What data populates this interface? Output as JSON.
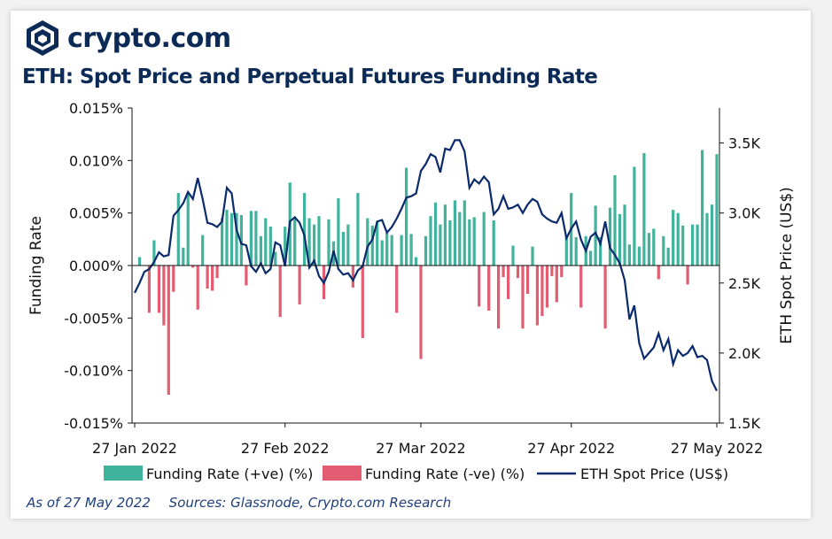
{
  "brand": {
    "name": "crypto.com"
  },
  "footer": {
    "as_of": "As of 27 May 2022",
    "sources": "Sources: Glassnode, Crypto.com Research"
  },
  "colors": {
    "positive": "#3fb39b",
    "negative": "#e25c72",
    "price": "#0b2a6b",
    "brand": "#0b2a56"
  },
  "chart_data": {
    "type": "bar+line",
    "title": "ETH: Spot Price and Perpetual Futures Funding Rate",
    "ylabel_left": "Funding Rate",
    "ylabel_right": "ETH Spot Price (US$)",
    "ylim_left": [
      -0.015,
      0.015
    ],
    "ylim_right": [
      1500,
      3750
    ],
    "yticks_left": [
      "0.015%",
      "0.010%",
      "0.005%",
      "0.000%",
      "-0.005%",
      "-0.010%",
      "-0.015%"
    ],
    "yticks_right": [
      "3.5K",
      "3.0K",
      "2.5K",
      "2.0K",
      "1.5K"
    ],
    "xticks": [
      "27 Jan 2022",
      "27 Feb 2022",
      "27 Mar 2022",
      "27 Apr 2022",
      "27 May 2022"
    ],
    "x_range": [
      "2022-01-27",
      "2022-05-27"
    ],
    "legend": [
      "Funding Rate (+ve) (%)",
      "Funding Rate (-ve) (%)",
      "ETH Spot Price (US$)"
    ],
    "legend_position": "bottom",
    "grid": false,
    "funding_rate": [
      [
        "2022-01-28",
        0.0008
      ],
      [
        "2022-01-29",
        0.0
      ],
      [
        "2022-01-30",
        -0.0045
      ],
      [
        "2022-01-31",
        0.0024
      ],
      [
        "2022-02-01",
        -0.0045
      ],
      [
        "2022-02-02",
        -0.0057
      ],
      [
        "2022-02-03",
        -0.0123
      ],
      [
        "2022-02-04",
        -0.0025
      ],
      [
        "2022-02-05",
        0.0069
      ],
      [
        "2022-02-06",
        0.0017
      ],
      [
        "2022-02-07",
        0.0069
      ],
      [
        "2022-02-08",
        -0.0002
      ],
      [
        "2022-02-09",
        -0.0042
      ],
      [
        "2022-02-10",
        0.0029
      ],
      [
        "2022-02-11",
        -0.0022
      ],
      [
        "2022-02-12",
        -0.0024
      ],
      [
        "2022-02-13",
        -0.0012
      ],
      [
        "2022-02-14",
        0.0045
      ],
      [
        "2022-02-15",
        0.0053
      ],
      [
        "2022-02-16",
        0.005
      ],
      [
        "2022-02-17",
        0.005
      ],
      [
        "2022-02-18",
        0.0048
      ],
      [
        "2022-02-19",
        -0.0019
      ],
      [
        "2022-02-20",
        0.0052
      ],
      [
        "2022-02-21",
        0.0052
      ],
      [
        "2022-02-22",
        0.0028
      ],
      [
        "2022-02-23",
        0.0045
      ],
      [
        "2022-02-24",
        0.0037
      ],
      [
        "2022-02-25",
        0.0013
      ],
      [
        "2022-02-26",
        -0.0049
      ],
      [
        "2022-02-27",
        0.0037
      ],
      [
        "2022-02-28",
        0.0079
      ],
      [
        "2022-03-01",
        0.0045
      ],
      [
        "2022-03-02",
        -0.0037
      ],
      [
        "2022-03-03",
        0.0069
      ],
      [
        "2022-03-04",
        0.0045
      ],
      [
        "2022-03-05",
        0.0039
      ],
      [
        "2022-03-06",
        0.0047
      ],
      [
        "2022-03-07",
        -0.0032
      ],
      [
        "2022-03-08",
        0.0044
      ],
      [
        "2022-03-09",
        0.0023
      ],
      [
        "2022-03-10",
        0.0064
      ],
      [
        "2022-03-11",
        0.0032
      ],
      [
        "2022-03-12",
        0.0039
      ],
      [
        "2022-03-13",
        -0.0021
      ],
      [
        "2022-03-14",
        0.0069
      ],
      [
        "2022-03-15",
        -0.0069
      ],
      [
        "2022-03-16",
        0.0045
      ],
      [
        "2022-03-17",
        0.0038
      ],
      [
        "2022-03-18",
        0.0042
      ],
      [
        "2022-03-19",
        0.0024
      ],
      [
        "2022-03-20",
        0.0031
      ],
      [
        "2022-03-21",
        0.0029
      ],
      [
        "2022-03-22",
        -0.0045
      ],
      [
        "2022-03-23",
        0.0029
      ],
      [
        "2022-03-24",
        0.0093
      ],
      [
        "2022-03-25",
        0.003
      ],
      [
        "2022-03-26",
        0.0008
      ],
      [
        "2022-03-27",
        -0.0089
      ],
      [
        "2022-03-28",
        0.0028
      ],
      [
        "2022-03-29",
        0.0047
      ],
      [
        "2022-03-30",
        0.006
      ],
      [
        "2022-03-31",
        0.0039
      ],
      [
        "2022-04-01",
        0.0058
      ],
      [
        "2022-04-02",
        0.0043
      ],
      [
        "2022-04-03",
        0.0062
      ],
      [
        "2022-04-04",
        0.0051
      ],
      [
        "2022-04-05",
        0.0062
      ],
      [
        "2022-04-06",
        0.0044
      ],
      [
        "2022-04-07",
        0.0046
      ],
      [
        "2022-04-08",
        -0.0039
      ],
      [
        "2022-04-09",
        0.0051
      ],
      [
        "2022-04-10",
        -0.0043
      ],
      [
        "2022-04-11",
        0.0043
      ],
      [
        "2022-04-12",
        -0.006
      ],
      [
        "2022-04-13",
        -0.0011
      ],
      [
        "2022-04-14",
        -0.0032
      ],
      [
        "2022-04-15",
        0.0019
      ],
      [
        "2022-04-16",
        -0.0012
      ],
      [
        "2022-04-17",
        -0.006
      ],
      [
        "2022-04-18",
        -0.0027
      ],
      [
        "2022-04-19",
        0.0018
      ],
      [
        "2022-04-20",
        -0.0057
      ],
      [
        "2022-04-21",
        -0.0048
      ],
      [
        "2022-04-22",
        -0.004
      ],
      [
        "2022-04-23",
        -0.001
      ],
      [
        "2022-04-24",
        -0.0035
      ],
      [
        "2022-04-25",
        -0.0011
      ],
      [
        "2022-04-26",
        0.0028
      ],
      [
        "2022-04-27",
        0.0069
      ],
      [
        "2022-04-28",
        0.0027
      ],
      [
        "2022-04-29",
        -0.004
      ],
      [
        "2022-04-30",
        0.0028
      ],
      [
        "2022-05-01",
        0.0014
      ],
      [
        "2022-05-02",
        0.0057
      ],
      [
        "2022-05-03",
        0.0027
      ],
      [
        "2022-05-04",
        -0.006
      ],
      [
        "2022-05-05",
        0.0055
      ],
      [
        "2022-05-06",
        0.0086
      ],
      [
        "2022-05-07",
        0.0049
      ],
      [
        "2022-05-08",
        0.0058
      ],
      [
        "2022-05-09",
        0.002
      ],
      [
        "2022-05-10",
        0.0094
      ],
      [
        "2022-05-11",
        0.0018
      ],
      [
        "2022-05-12",
        0.0107
      ],
      [
        "2022-05-13",
        0.0031
      ],
      [
        "2022-05-14",
        0.0035
      ],
      [
        "2022-05-15",
        -0.0013
      ],
      [
        "2022-05-16",
        0.0028
      ],
      [
        "2022-05-17",
        0.0017
      ],
      [
        "2022-05-18",
        0.0053
      ],
      [
        "2022-05-19",
        0.005
      ],
      [
        "2022-05-20",
        0.0038
      ],
      [
        "2022-05-21",
        -0.0018
      ],
      [
        "2022-05-22",
        0.0039
      ],
      [
        "2022-05-23",
        0.0039
      ],
      [
        "2022-05-24",
        0.011
      ],
      [
        "2022-05-25",
        0.005
      ],
      [
        "2022-05-26",
        0.0058
      ],
      [
        "2022-05-27",
        0.0106
      ]
    ],
    "price": [
      [
        "2022-01-27",
        2430
      ],
      [
        "2022-01-28",
        2500
      ],
      [
        "2022-01-29",
        2580
      ],
      [
        "2022-01-30",
        2600
      ],
      [
        "2022-01-31",
        2650
      ],
      [
        "2022-02-01",
        2720
      ],
      [
        "2022-02-02",
        2690
      ],
      [
        "2022-02-03",
        2700
      ],
      [
        "2022-02-04",
        2980
      ],
      [
        "2022-02-05",
        3020
      ],
      [
        "2022-02-06",
        3070
      ],
      [
        "2022-02-07",
        3150
      ],
      [
        "2022-02-08",
        3100
      ],
      [
        "2022-02-09",
        3250
      ],
      [
        "2022-02-10",
        3100
      ],
      [
        "2022-02-11",
        2930
      ],
      [
        "2022-02-12",
        2920
      ],
      [
        "2022-02-13",
        2900
      ],
      [
        "2022-02-14",
        2940
      ],
      [
        "2022-02-15",
        3180
      ],
      [
        "2022-02-16",
        3140
      ],
      [
        "2022-02-17",
        2880
      ],
      [
        "2022-02-18",
        2780
      ],
      [
        "2022-02-19",
        2770
      ],
      [
        "2022-02-20",
        2620
      ],
      [
        "2022-02-21",
        2580
      ],
      [
        "2022-02-22",
        2640
      ],
      [
        "2022-02-23",
        2570
      ],
      [
        "2022-02-24",
        2600
      ],
      [
        "2022-02-25",
        2790
      ],
      [
        "2022-02-26",
        2770
      ],
      [
        "2022-02-27",
        2620
      ],
      [
        "2022-02-28",
        2940
      ],
      [
        "2022-03-01",
        2970
      ],
      [
        "2022-03-02",
        2930
      ],
      [
        "2022-03-03",
        2840
      ],
      [
        "2022-03-04",
        2610
      ],
      [
        "2022-03-05",
        2660
      ],
      [
        "2022-03-06",
        2550
      ],
      [
        "2022-03-07",
        2500
      ],
      [
        "2022-03-08",
        2580
      ],
      [
        "2022-03-09",
        2730
      ],
      [
        "2022-03-10",
        2600
      ],
      [
        "2022-03-11",
        2560
      ],
      [
        "2022-03-12",
        2570
      ],
      [
        "2022-03-13",
        2520
      ],
      [
        "2022-03-14",
        2590
      ],
      [
        "2022-03-15",
        2620
      ],
      [
        "2022-03-16",
        2760
      ],
      [
        "2022-03-17",
        2810
      ],
      [
        "2022-03-18",
        2940
      ],
      [
        "2022-03-19",
        2950
      ],
      [
        "2022-03-20",
        2860
      ],
      [
        "2022-03-21",
        2900
      ],
      [
        "2022-03-22",
        2960
      ],
      [
        "2022-03-23",
        3030
      ],
      [
        "2022-03-24",
        3110
      ],
      [
        "2022-03-25",
        3120
      ],
      [
        "2022-03-26",
        3140
      ],
      [
        "2022-03-27",
        3300
      ],
      [
        "2022-03-28",
        3350
      ],
      [
        "2022-03-29",
        3420
      ],
      [
        "2022-03-30",
        3400
      ],
      [
        "2022-03-31",
        3290
      ],
      [
        "2022-04-01",
        3460
      ],
      [
        "2022-04-02",
        3450
      ],
      [
        "2022-04-03",
        3520
      ],
      [
        "2022-04-04",
        3520
      ],
      [
        "2022-04-05",
        3440
      ],
      [
        "2022-04-06",
        3180
      ],
      [
        "2022-04-07",
        3240
      ],
      [
        "2022-04-08",
        3210
      ],
      [
        "2022-04-09",
        3260
      ],
      [
        "2022-04-10",
        3220
      ],
      [
        "2022-04-11",
        2990
      ],
      [
        "2022-04-12",
        3030
      ],
      [
        "2022-04-13",
        3120
      ],
      [
        "2022-04-14",
        3030
      ],
      [
        "2022-04-15",
        3040
      ],
      [
        "2022-04-16",
        3060
      ],
      [
        "2022-04-17",
        3000
      ],
      [
        "2022-04-18",
        3060
      ],
      [
        "2022-04-19",
        3100
      ],
      [
        "2022-04-20",
        3080
      ],
      [
        "2022-04-21",
        2990
      ],
      [
        "2022-04-22",
        2960
      ],
      [
        "2022-04-23",
        2940
      ],
      [
        "2022-04-24",
        2930
      ],
      [
        "2022-04-25",
        3000
      ],
      [
        "2022-04-26",
        2820
      ],
      [
        "2022-04-27",
        2890
      ],
      [
        "2022-04-28",
        2940
      ],
      [
        "2022-04-29",
        2810
      ],
      [
        "2022-04-30",
        2730
      ],
      [
        "2022-05-01",
        2830
      ],
      [
        "2022-05-02",
        2860
      ],
      [
        "2022-05-03",
        2780
      ],
      [
        "2022-05-04",
        2940
      ],
      [
        "2022-05-05",
        2750
      ],
      [
        "2022-05-06",
        2700
      ],
      [
        "2022-05-07",
        2640
      ],
      [
        "2022-05-08",
        2520
      ],
      [
        "2022-05-09",
        2240
      ],
      [
        "2022-05-10",
        2340
      ],
      [
        "2022-05-11",
        2070
      ],
      [
        "2022-05-12",
        1960
      ],
      [
        "2022-05-13",
        2000
      ],
      [
        "2022-05-14",
        2040
      ],
      [
        "2022-05-15",
        2140
      ],
      [
        "2022-05-16",
        2020
      ],
      [
        "2022-05-17",
        2100
      ],
      [
        "2022-05-18",
        1920
      ],
      [
        "2022-05-19",
        2020
      ],
      [
        "2022-05-20",
        1980
      ],
      [
        "2022-05-21",
        2000
      ],
      [
        "2022-05-22",
        2050
      ],
      [
        "2022-05-23",
        1970
      ],
      [
        "2022-05-24",
        1980
      ],
      [
        "2022-05-25",
        1950
      ],
      [
        "2022-05-26",
        1800
      ],
      [
        "2022-05-27",
        1730
      ]
    ]
  }
}
